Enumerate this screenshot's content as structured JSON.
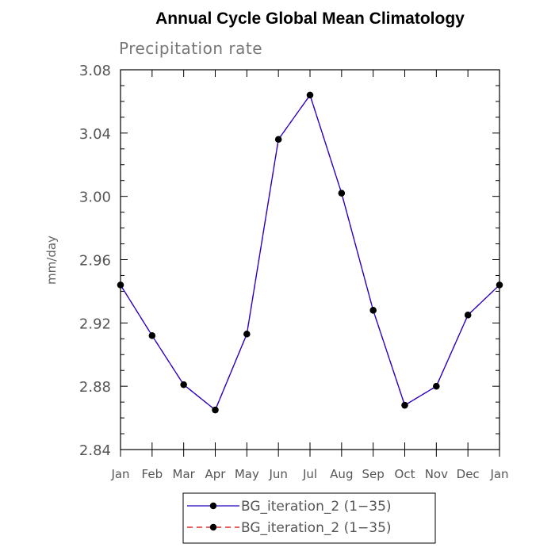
{
  "chart_data": {
    "type": "line",
    "title": "Annual Cycle Global Mean Climatology",
    "subtitle": "Precipitation rate",
    "xlabel": "",
    "ylabel": "mm/day",
    "categories": [
      "Jan",
      "Feb",
      "Mar",
      "Apr",
      "May",
      "Jun",
      "Jul",
      "Aug",
      "Sep",
      "Oct",
      "Nov",
      "Dec",
      "Jan"
    ],
    "ylim": [
      2.84,
      3.08
    ],
    "yticks": [
      "2.84",
      "2.88",
      "2.92",
      "2.96",
      "3.00",
      "3.04",
      "3.08"
    ],
    "grid": false,
    "legend_position": "bottom",
    "series": [
      {
        "name": "BG_iteration_2 (1−35)",
        "color": "#2200cc",
        "line_style": "solid",
        "marker": "circle",
        "values": [
          2.944,
          2.912,
          2.881,
          2.865,
          2.913,
          3.036,
          3.064,
          3.002,
          2.928,
          2.868,
          2.88,
          2.925,
          2.944
        ]
      },
      {
        "name": "BG_iteration_2 (1−35)",
        "color": "#dd0000",
        "line_style": "dashed",
        "marker": "circle",
        "values": [
          2.944,
          2.912,
          2.881,
          2.865,
          2.913,
          3.036,
          3.064,
          3.002,
          2.928,
          2.868,
          2.88,
          2.925,
          2.944
        ]
      }
    ]
  }
}
